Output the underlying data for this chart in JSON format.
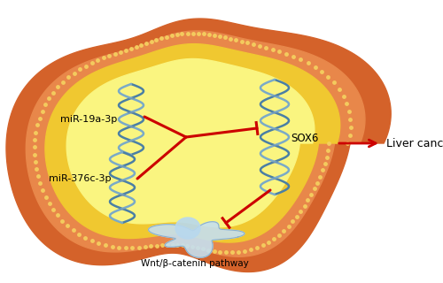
{
  "bg_color": "#ffffff",
  "cell_outer_color": "#d4622a",
  "cell_mid_color": "#e8874a",
  "cell_inner_color": "#f0c830",
  "cell_core_color": "#faf580",
  "dot_color": "#f0d060",
  "mir_color1": "#4a7fa5",
  "mir_color2": "#6699bb",
  "arrow_color": "#cc0000",
  "mir19a_label": "miR-19a-3p",
  "mir376c_label": "miR-376c-3p",
  "sox6_label": "SOX6",
  "wnt_label": "Wnt/β-catenin pathway",
  "liver_cancer_label": "Liver cancer",
  "figsize": [
    5.0,
    3.2
  ],
  "dpi": 100
}
